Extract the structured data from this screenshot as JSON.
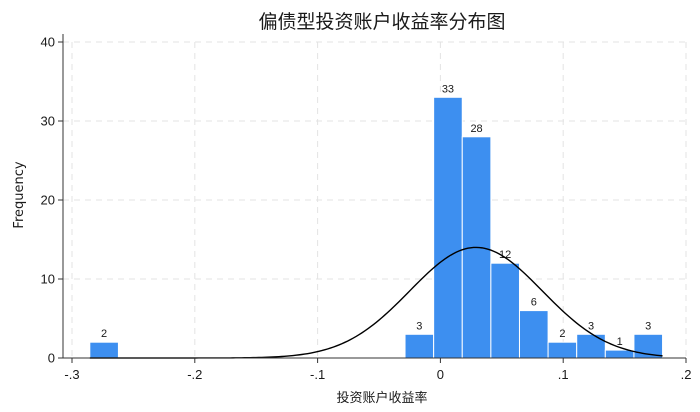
{
  "chart_data": {
    "type": "bar",
    "title": "偏债型投资账户收益率分布图",
    "xlabel": "投资账户收益率",
    "ylabel": "Frequency",
    "xlim": [
      -0.3,
      0.2
    ],
    "ylim": [
      0,
      40
    ],
    "bin_width": 0.0233,
    "x_ticks": [
      -0.3,
      -0.2,
      -0.1,
      0,
      0.1,
      0.2
    ],
    "x_tick_labels": [
      "-.3",
      "-.2",
      "-.1",
      "0",
      ".1",
      ".2"
    ],
    "y_ticks": [
      0,
      10,
      20,
      30,
      40
    ],
    "y_tick_labels": [
      "0",
      "10",
      "20",
      "30",
      "40"
    ],
    "bars": [
      {
        "x": -0.2855,
        "label": "2",
        "value": 2
      },
      {
        "x": -0.0288,
        "label": "3",
        "value": 3
      },
      {
        "x": -0.0055,
        "label": "33",
        "value": 33
      },
      {
        "x": 0.0178,
        "label": "28",
        "value": 28
      },
      {
        "x": 0.0411,
        "label": "12",
        "value": 12
      },
      {
        "x": 0.0644,
        "label": "6",
        "value": 6
      },
      {
        "x": 0.0877,
        "label": "2",
        "value": 2
      },
      {
        "x": 0.111,
        "label": "3",
        "value": 3
      },
      {
        "x": 0.1343,
        "label": "1",
        "value": 1
      },
      {
        "x": 0.1576,
        "label": "3",
        "value": 3
      }
    ],
    "curve": {
      "type": "normal-density",
      "mean": 0.029,
      "sd": 0.054,
      "peak": 14,
      "x_range": [
        -0.2855,
        0.1809
      ]
    },
    "grid": true,
    "legend": "none",
    "colors": {
      "bar": "#3d8ff0",
      "curve": "#000000",
      "grid": "#e3e3e3"
    }
  }
}
